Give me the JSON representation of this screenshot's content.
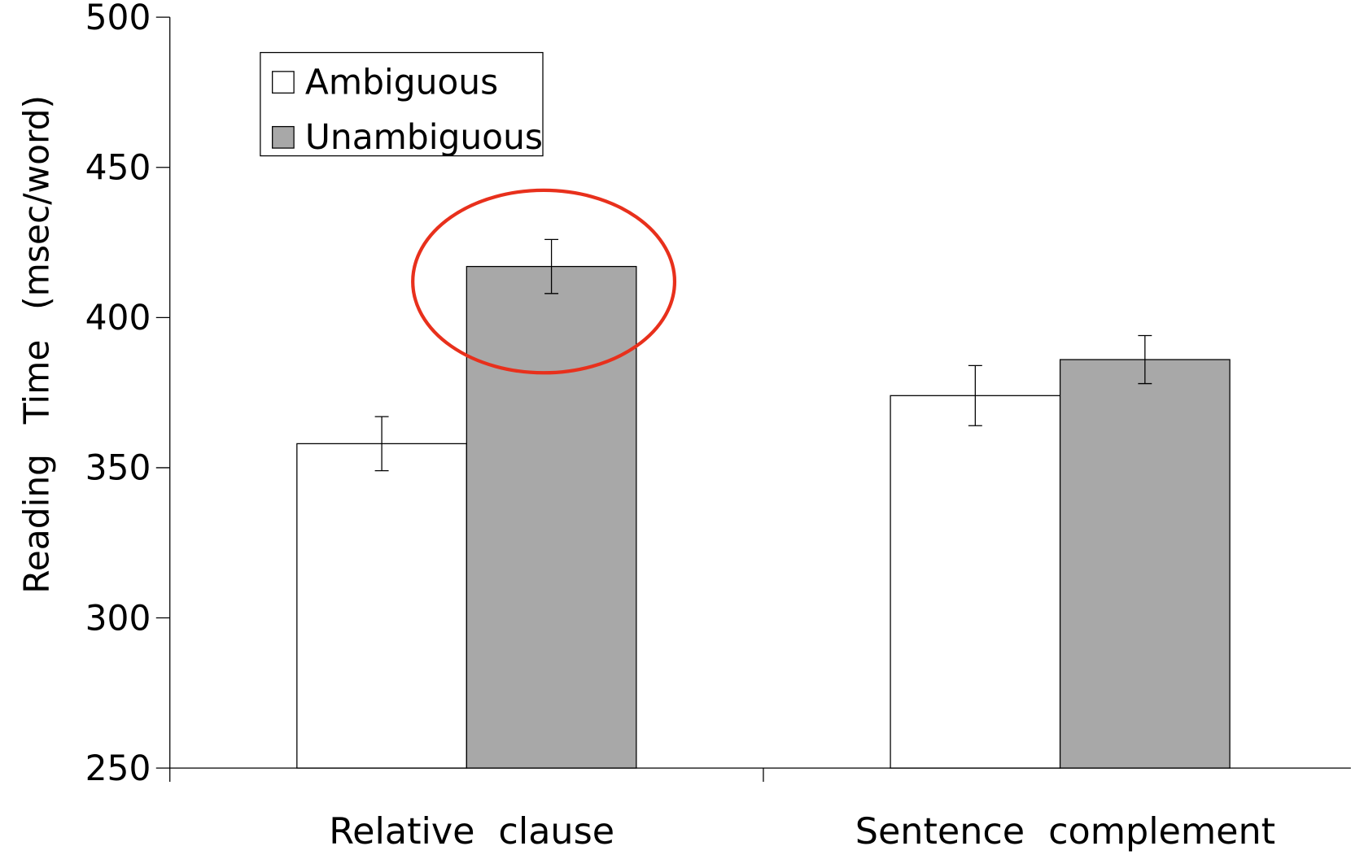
{
  "chart_data": {
    "type": "bar",
    "y_label": "Reading Time (msec/word)",
    "categories": [
      "Relative clause",
      "Sentence complement"
    ],
    "series": [
      {
        "name": "Ambiguous",
        "color": "#ffffff",
        "values": [
          358,
          374
        ],
        "errors": [
          9,
          10
        ]
      },
      {
        "name": "Unambiguous",
        "color": "#a8a8a8",
        "values": [
          417,
          386
        ],
        "errors": [
          9,
          8
        ]
      }
    ],
    "ylim": [
      250,
      500
    ],
    "yticks": [
      250,
      300,
      350,
      400,
      450,
      500
    ],
    "legend": "upper left"
  }
}
